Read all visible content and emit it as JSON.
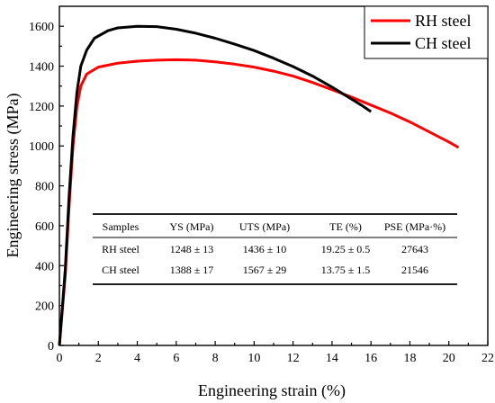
{
  "chart_data": {
    "type": "line",
    "xlabel": "Engineering strain (%)",
    "ylabel": "Engineering stress (MPa)",
    "xlim": [
      0,
      22
    ],
    "ylim": [
      0,
      1700
    ],
    "x_ticks": [
      0,
      2,
      4,
      6,
      8,
      10,
      12,
      14,
      16,
      18,
      20,
      22
    ],
    "y_ticks": [
      0,
      200,
      400,
      600,
      800,
      1000,
      1200,
      1400,
      1600
    ],
    "grid": false,
    "legend_position": "top-right",
    "series": [
      {
        "name": "RH steel",
        "color": "#ff0000",
        "points": [
          [
            0,
            0
          ],
          [
            0.3,
            350
          ],
          [
            0.5,
            700
          ],
          [
            0.7,
            1000
          ],
          [
            0.9,
            1200
          ],
          [
            1.1,
            1300
          ],
          [
            1.4,
            1360
          ],
          [
            2,
            1395
          ],
          [
            3,
            1415
          ],
          [
            4,
            1425
          ],
          [
            5,
            1430
          ],
          [
            6,
            1432
          ],
          [
            7,
            1430
          ],
          [
            8,
            1422
          ],
          [
            9,
            1410
          ],
          [
            10,
            1395
          ],
          [
            11,
            1375
          ],
          [
            12,
            1350
          ],
          [
            13,
            1318
          ],
          [
            14,
            1282
          ],
          [
            15,
            1245
          ],
          [
            16,
            1205
          ],
          [
            17,
            1165
          ],
          [
            18,
            1120
          ],
          [
            19,
            1070
          ],
          [
            20,
            1020
          ],
          [
            20.5,
            992
          ]
        ]
      },
      {
        "name": "CH steel",
        "color": "#000000",
        "points": [
          [
            0,
            0
          ],
          [
            0.3,
            380
          ],
          [
            0.5,
            750
          ],
          [
            0.7,
            1050
          ],
          [
            0.9,
            1270
          ],
          [
            1.1,
            1400
          ],
          [
            1.4,
            1480
          ],
          [
            1.8,
            1540
          ],
          [
            2.5,
            1578
          ],
          [
            3,
            1592
          ],
          [
            4,
            1600
          ],
          [
            5,
            1598
          ],
          [
            6,
            1585
          ],
          [
            7,
            1565
          ],
          [
            8,
            1540
          ],
          [
            9,
            1510
          ],
          [
            10,
            1478
          ],
          [
            11,
            1440
          ],
          [
            12,
            1398
          ],
          [
            13,
            1350
          ],
          [
            14,
            1295
          ],
          [
            15,
            1235
          ],
          [
            15.5,
            1205
          ],
          [
            16,
            1172
          ]
        ]
      }
    ]
  },
  "table": {
    "headers": [
      "Samples",
      "YS (MPa)",
      "UTS (MPa)",
      "TE (%)",
      "PSE (MPa·%)"
    ],
    "rows": [
      [
        "RH steel",
        "1248 ± 13",
        "1436 ± 10",
        "19.25 ± 0.5",
        "27643"
      ],
      [
        "CH steel",
        "1388 ± 17",
        "1567 ± 29",
        "13.75 ± 1.5",
        "21546"
      ]
    ]
  }
}
